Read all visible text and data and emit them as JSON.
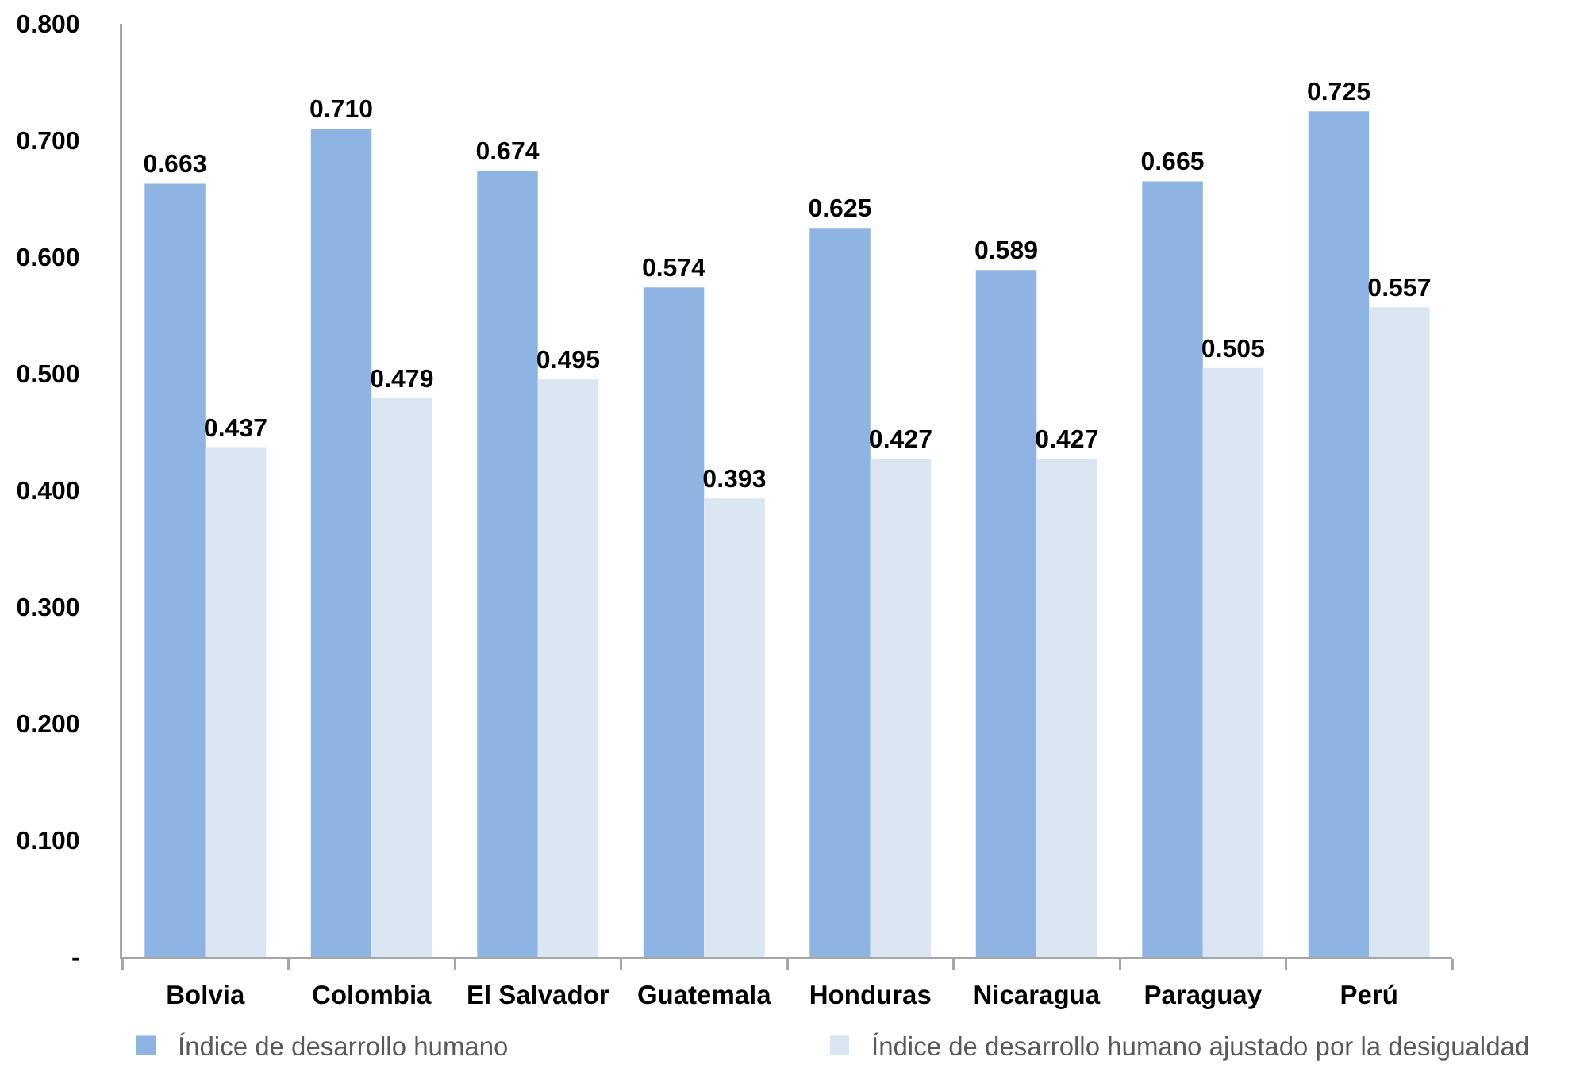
{
  "chart_data": {
    "type": "bar",
    "categories": [
      "Bolvia",
      "Colombia",
      "El Salvador",
      "Guatemala",
      "Honduras",
      "Nicaragua",
      "Paraguay",
      "Perú"
    ],
    "series": [
      {
        "name": "Índice de desarrollo humano",
        "color": "#8eb4e3",
        "values": [
          0.663,
          0.71,
          0.674,
          0.574,
          0.625,
          0.589,
          0.665,
          0.725
        ],
        "value_labels": [
          "0.663",
          "0.710",
          "0.674",
          "0.574",
          "0.625",
          "0.589",
          "0.665",
          "0.725"
        ]
      },
      {
        "name": "Índice de desarrollo humano ajustado por la desigualdad",
        "color": "#dce6f2",
        "values": [
          0.437,
          0.479,
          0.495,
          0.393,
          0.427,
          0.427,
          0.505,
          0.557
        ],
        "value_labels": [
          "0.437",
          "0.479",
          "0.495",
          "0.393",
          "0.427",
          "0.427",
          "0.505",
          "0.557"
        ]
      }
    ],
    "ylim": [
      0,
      0.8
    ],
    "yticks": [
      {
        "value": 0,
        "label": "-"
      },
      {
        "value": 0.1,
        "label": "0.100"
      },
      {
        "value": 0.2,
        "label": "0.200"
      },
      {
        "value": 0.3,
        "label": "0.300"
      },
      {
        "value": 0.4,
        "label": "0.400"
      },
      {
        "value": 0.5,
        "label": "0.500"
      },
      {
        "value": 0.6,
        "label": "0.600"
      },
      {
        "value": 0.7,
        "label": "0.700"
      },
      {
        "value": 0.8,
        "label": "0.800"
      }
    ],
    "legend": "bottom"
  }
}
